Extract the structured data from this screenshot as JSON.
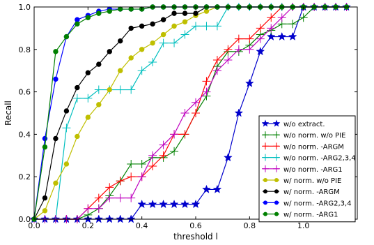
{
  "chart_data": {
    "type": "line",
    "xlabel": "threshold l",
    "ylabel": "Recall",
    "xlim": [
      0,
      1.2
    ],
    "ylim": [
      0,
      1.0
    ],
    "xticks": [
      0.0,
      0.2,
      0.4,
      0.6,
      0.8,
      1.0
    ],
    "yticks": [
      0.0,
      0.2,
      0.4,
      0.6,
      0.8,
      1.0
    ],
    "legend_position": "lower-right",
    "grid": false,
    "series": [
      {
        "name": "w/o extract.",
        "color": "#0000cc",
        "marker": "star",
        "x": [
          0.0,
          0.04,
          0.08,
          0.12,
          0.16,
          0.2,
          0.24,
          0.28,
          0.32,
          0.36,
          0.4,
          0.44,
          0.48,
          0.52,
          0.56,
          0.6,
          0.64,
          0.68,
          0.72,
          0.76,
          0.8,
          0.84,
          0.88,
          0.92,
          0.96,
          1.0,
          1.04,
          1.08,
          1.12,
          1.16
        ],
        "y": [
          0.0,
          0.0,
          0.0,
          0.0,
          0.0,
          0.0,
          0.0,
          0.0,
          0.0,
          0.0,
          0.07,
          0.07,
          0.07,
          0.07,
          0.07,
          0.07,
          0.14,
          0.14,
          0.29,
          0.5,
          0.64,
          0.79,
          0.86,
          0.86,
          0.86,
          1.0,
          1.0,
          1.0,
          1.0,
          1.0
        ]
      },
      {
        "name": "w/o norm. w/o PIE",
        "color": "#008000",
        "marker": "plus",
        "x": [
          0.0,
          0.04,
          0.08,
          0.12,
          0.16,
          0.2,
          0.24,
          0.28,
          0.32,
          0.36,
          0.4,
          0.44,
          0.48,
          0.52,
          0.56,
          0.6,
          0.64,
          0.68,
          0.72,
          0.76,
          0.8,
          0.84,
          0.88,
          0.92,
          0.96,
          1.0,
          1.04,
          1.08,
          1.12,
          1.16
        ],
        "y": [
          0.0,
          0.0,
          0.0,
          0.0,
          0.0,
          0.02,
          0.05,
          0.11,
          0.18,
          0.26,
          0.26,
          0.29,
          0.29,
          0.32,
          0.4,
          0.5,
          0.58,
          0.72,
          0.79,
          0.79,
          0.82,
          0.87,
          0.89,
          0.92,
          0.92,
          0.95,
          1.0,
          1.0,
          1.0,
          1.0
        ]
      },
      {
        "name": "w/o norm. -ARGM",
        "color": "#ff0000",
        "marker": "plus",
        "x": [
          0.0,
          0.04,
          0.08,
          0.12,
          0.16,
          0.2,
          0.24,
          0.28,
          0.32,
          0.36,
          0.4,
          0.44,
          0.48,
          0.52,
          0.56,
          0.6,
          0.64,
          0.68,
          0.72,
          0.76,
          0.8,
          0.84,
          0.88,
          0.92,
          0.96,
          1.0,
          1.04,
          1.08,
          1.12,
          1.16
        ],
        "y": [
          0.0,
          0.0,
          0.0,
          0.0,
          0.0,
          0.05,
          0.1,
          0.15,
          0.18,
          0.2,
          0.2,
          0.25,
          0.3,
          0.4,
          0.4,
          0.5,
          0.65,
          0.75,
          0.8,
          0.85,
          0.85,
          0.9,
          0.95,
          1.0,
          1.0,
          1.0,
          1.0,
          1.0,
          1.0,
          1.0
        ]
      },
      {
        "name": "w/o norm. -ARG2,3,4",
        "color": "#00bfbf",
        "marker": "plus",
        "x": [
          0.0,
          0.04,
          0.08,
          0.12,
          0.16,
          0.2,
          0.24,
          0.28,
          0.32,
          0.36,
          0.4,
          0.44,
          0.48,
          0.52,
          0.56,
          0.6,
          0.64,
          0.68,
          0.72,
          0.76,
          0.8,
          0.84,
          0.88,
          0.92,
          0.96,
          1.0,
          1.04,
          1.08,
          1.12,
          1.16
        ],
        "y": [
          0.0,
          0.0,
          0.0,
          0.43,
          0.57,
          0.57,
          0.61,
          0.61,
          0.61,
          0.61,
          0.7,
          0.74,
          0.83,
          0.83,
          0.87,
          0.91,
          0.91,
          0.91,
          1.0,
          1.0,
          1.0,
          1.0,
          1.0,
          1.0,
          1.0,
          1.0,
          1.0,
          1.0,
          1.0,
          1.0
        ]
      },
      {
        "name": "w/o norm. -ARG1",
        "color": "#bf00bf",
        "marker": "plus",
        "x": [
          0.0,
          0.04,
          0.08,
          0.12,
          0.16,
          0.2,
          0.24,
          0.28,
          0.32,
          0.36,
          0.4,
          0.44,
          0.48,
          0.52,
          0.56,
          0.6,
          0.64,
          0.68,
          0.72,
          0.76,
          0.8,
          0.84,
          0.88,
          0.92,
          0.96,
          1.0,
          1.04,
          1.08,
          1.12,
          1.16
        ],
        "y": [
          0.0,
          0.0,
          0.0,
          0.0,
          0.0,
          0.05,
          0.05,
          0.1,
          0.1,
          0.1,
          0.2,
          0.3,
          0.35,
          0.4,
          0.5,
          0.55,
          0.6,
          0.7,
          0.75,
          0.8,
          0.8,
          0.85,
          0.9,
          0.95,
          1.0,
          1.0,
          1.0,
          1.0,
          1.0,
          1.0
        ]
      },
      {
        "name": "w/ norm. w/o PIE",
        "color": "#bfbf00",
        "marker": "circle",
        "x": [
          0.0,
          0.04,
          0.08,
          0.12,
          0.16,
          0.2,
          0.24,
          0.28,
          0.32,
          0.36,
          0.4,
          0.44,
          0.48,
          0.52,
          0.56,
          0.6,
          0.64,
          0.68,
          0.72,
          0.76,
          0.8,
          0.84,
          0.88,
          0.92,
          0.96,
          1.0,
          1.04,
          1.08,
          1.12,
          1.16
        ],
        "y": [
          0.0,
          0.04,
          0.17,
          0.26,
          0.39,
          0.48,
          0.54,
          0.61,
          0.7,
          0.76,
          0.8,
          0.83,
          0.87,
          0.91,
          0.93,
          0.96,
          0.98,
          1.0,
          1.0,
          1.0,
          1.0,
          1.0,
          1.0,
          1.0,
          1.0,
          1.0,
          1.0,
          1.0,
          1.0,
          1.0
        ]
      },
      {
        "name": "w/ norm. -ARGM",
        "color": "#000000",
        "marker": "circle",
        "x": [
          0.0,
          0.04,
          0.08,
          0.12,
          0.16,
          0.2,
          0.24,
          0.28,
          0.32,
          0.36,
          0.4,
          0.44,
          0.48,
          0.52,
          0.56,
          0.6,
          0.64,
          0.68,
          0.72,
          0.76,
          0.8,
          0.84,
          0.88,
          0.92,
          0.96,
          1.0,
          1.04,
          1.08,
          1.12,
          1.16
        ],
        "y": [
          0.0,
          0.1,
          0.38,
          0.51,
          0.62,
          0.69,
          0.73,
          0.79,
          0.84,
          0.9,
          0.91,
          0.92,
          0.94,
          0.97,
          0.97,
          0.97,
          1.0,
          1.0,
          1.0,
          1.0,
          1.0,
          1.0,
          1.0,
          1.0,
          1.0,
          1.0,
          1.0,
          1.0,
          1.0,
          1.0
        ]
      },
      {
        "name": "w/ norm. -ARG2,3,4",
        "color": "#0000ff",
        "marker": "circle",
        "x": [
          0.0,
          0.04,
          0.08,
          0.12,
          0.16,
          0.2,
          0.24,
          0.28,
          0.32,
          0.36,
          0.4,
          0.44,
          0.48,
          0.52,
          0.56,
          0.6,
          0.64,
          0.68,
          0.72,
          0.76,
          0.8,
          0.84,
          0.88,
          0.92,
          0.96,
          1.0,
          1.04,
          1.08,
          1.12,
          1.16
        ],
        "y": [
          0.0,
          0.38,
          0.66,
          0.86,
          0.94,
          0.96,
          0.98,
          0.99,
          0.99,
          0.99,
          0.99,
          1.0,
          1.0,
          1.0,
          1.0,
          1.0,
          1.0,
          1.0,
          1.0,
          1.0,
          1.0,
          1.0,
          1.0,
          1.0,
          1.0,
          1.0,
          1.0,
          1.0,
          1.0,
          1.0
        ]
      },
      {
        "name": "w/ norm. -ARG1",
        "color": "#008000",
        "marker": "circle",
        "x": [
          0.0,
          0.04,
          0.08,
          0.12,
          0.16,
          0.2,
          0.24,
          0.28,
          0.32,
          0.36,
          0.4,
          0.44,
          0.48,
          0.52,
          0.56,
          0.6,
          0.64,
          0.68,
          0.72,
          0.76,
          0.8,
          0.84,
          0.88,
          0.92,
          0.96,
          1.0,
          1.04,
          1.08,
          1.12,
          1.16
        ],
        "y": [
          0.0,
          0.34,
          0.79,
          0.86,
          0.92,
          0.95,
          0.97,
          0.98,
          0.99,
          0.99,
          0.99,
          1.0,
          1.0,
          1.0,
          1.0,
          1.0,
          1.0,
          1.0,
          1.0,
          1.0,
          1.0,
          1.0,
          1.0,
          1.0,
          1.0,
          1.0,
          1.0,
          1.0,
          1.0,
          1.0
        ]
      }
    ]
  }
}
